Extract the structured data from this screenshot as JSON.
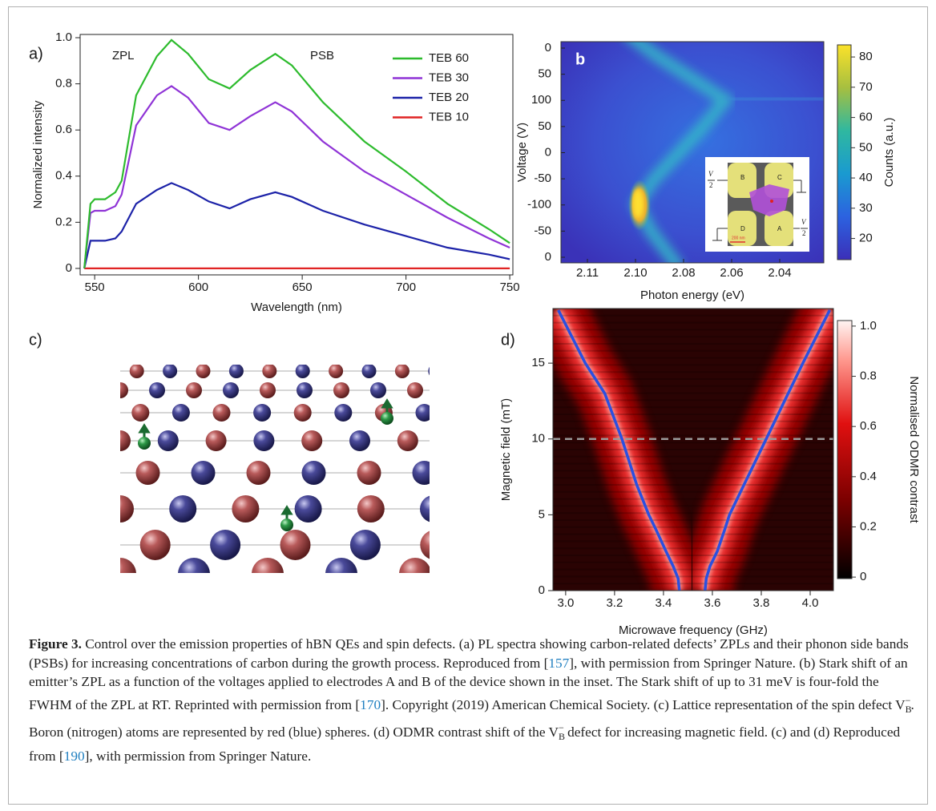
{
  "panel_labels": [
    "a)",
    "b",
    "c)",
    "d)"
  ],
  "chart_data": [
    {
      "type": "line",
      "xlabel": "Wavelength (nm)",
      "ylabel": "Normalized intensity",
      "annotations": [
        "ZPL",
        "PSB"
      ],
      "x": [
        545,
        548,
        550,
        555,
        560,
        563,
        570,
        580,
        587,
        595,
        605,
        615,
        625,
        637,
        645,
        660,
        680,
        700,
        720,
        740,
        750
      ],
      "series": [
        {
          "name": "TEB 60",
          "color": "#2dbb2d",
          "values": [
            0,
            0.28,
            0.3,
            0.3,
            0.33,
            0.38,
            0.75,
            0.92,
            0.99,
            0.93,
            0.82,
            0.78,
            0.86,
            0.93,
            0.88,
            0.72,
            0.55,
            0.42,
            0.28,
            0.17,
            0.11
          ]
        },
        {
          "name": "TEB 30",
          "color": "#8f33d6",
          "values": [
            0,
            0.24,
            0.25,
            0.25,
            0.27,
            0.32,
            0.62,
            0.75,
            0.79,
            0.74,
            0.63,
            0.6,
            0.66,
            0.72,
            0.68,
            0.55,
            0.42,
            0.32,
            0.22,
            0.13,
            0.09
          ]
        },
        {
          "name": "TEB 20",
          "color": "#1c22a8",
          "values": [
            0,
            0.12,
            0.12,
            0.12,
            0.13,
            0.16,
            0.28,
            0.34,
            0.37,
            0.34,
            0.29,
            0.26,
            0.3,
            0.33,
            0.31,
            0.25,
            0.19,
            0.14,
            0.09,
            0.06,
            0.04
          ]
        },
        {
          "name": "TEB 10",
          "color": "#e02424",
          "values": [
            0,
            0,
            0,
            0,
            0,
            0,
            0,
            0,
            0,
            0,
            0,
            0,
            0,
            0,
            0,
            0,
            0,
            0,
            0,
            0,
            0
          ]
        }
      ],
      "xlim": [
        543,
        751.5
      ],
      "ylim": [
        -0.028,
        1.014
      ],
      "xticks": [
        550,
        600,
        650,
        700,
        750
      ],
      "yticks": [
        0,
        0.2,
        0.4,
        0.6,
        0.8,
        {
          "value": 1,
          "label": "1.0"
        }
      ],
      "legend": "upper right"
    },
    {
      "type": "heatmap",
      "xlabel": "Photon energy (eV)",
      "ylabel": "Voltage (V)",
      "xtick_labels": [
        "2.11",
        "2.10",
        "2.08",
        "2.06",
        "2.04"
      ],
      "ytick_labels": [
        "0",
        "50",
        "100",
        "50",
        "0",
        "-50",
        "-100",
        "-50",
        "0"
      ],
      "colorbar": {
        "label": "Counts (a.u.)",
        "colormap": "parula",
        "lim": [
          13,
          84
        ],
        "ticks": [
          20,
          30,
          40,
          50,
          60,
          70,
          80
        ]
      },
      "inset": {
        "electrodes": [
          "B",
          "C",
          "D",
          "A"
        ],
        "voltage": "V",
        "divisor": "2",
        "scale": "200 nm"
      }
    },
    {
      "type": "heatmap",
      "xlabel": "Microwave frequency (GHz)",
      "ylabel": "Magnetic field (mT)",
      "xlim": [
        2.948,
        4.095
      ],
      "ylim": [
        0,
        18.6
      ],
      "xticks": [
        {
          "value": 3,
          "label": "3.0"
        },
        3.2,
        3.4,
        3.6,
        3.8,
        {
          "value": 4,
          "label": "4.0"
        }
      ],
      "yticks": [
        0,
        5,
        10,
        15
      ],
      "hline": 10,
      "series": [
        {
          "color": "#2a4fe0",
          "x": [
            3.465,
            3.46,
            3.44,
            3.41,
            3.37,
            3.34,
            3.29,
            3.23,
            3.16,
            3.08,
            2.97
          ],
          "values": [
            0,
            0.8,
            1.6,
            2.6,
            4,
            5,
            7,
            10,
            13,
            15,
            18.5
          ]
        },
        {
          "color": "#2a4fe0",
          "x": [
            3.57,
            3.575,
            3.59,
            3.62,
            3.65,
            3.67,
            3.73,
            3.82,
            3.91,
            3.97,
            4.08
          ],
          "values": [
            0,
            0.8,
            1.6,
            2.6,
            4,
            5,
            7,
            10,
            13,
            15,
            18.5
          ]
        }
      ],
      "colorbar": {
        "label": "Normalised ODMR contrast",
        "colormap": "hot",
        "lim": [
          -0.006,
          1.022
        ],
        "ticks": [
          0,
          0.2,
          0.4,
          0.6,
          0.8,
          {
            "value": 1,
            "label": "1.0"
          }
        ]
      }
    }
  ],
  "caption": [
    {
      "text": "Figure 3.",
      "style": "bold"
    },
    {
      "text": " Control over the emission properties of hBN QEs and spin defects. (a) PL spectra showing carbon-related defects’ ZPLs and their phonon side bands (PSBs) for increasing concentrations of carbon during the growth process. Reproduced from [",
      "style": "plain"
    },
    {
      "text": "157",
      "style": "link"
    },
    {
      "text": "], with permission from Springer Nature. (b) Stark shift of an emitter’s ZPL as a function of the voltages applied to electrodes A and B of the device shown in the inset. The Stark shift of up to 31 meV is four-fold the FWHM of the ZPL at RT. Reprinted with permission from [",
      "style": "plain"
    },
    {
      "text": "170",
      "style": "link"
    },
    {
      "text": "]. Copyright (2019) American Chemical Society. (c) Lattice representation of the spin defect V",
      "style": "plain"
    },
    {
      "text": "B",
      "style": "sub"
    },
    {
      "text": "−",
      "style": "sup"
    },
    {
      "text": ". Boron (nitrogen) atoms are represented by red (blue) spheres. (d) ODMR contrast shift of the V",
      "style": "plain"
    },
    {
      "text": "B",
      "style": "sub"
    },
    {
      "text": "−",
      "style": "sup"
    },
    {
      "text": " defect for increasing magnetic field. (c) and (d) Reproduced from [",
      "style": "plain"
    },
    {
      "text": "190",
      "style": "link"
    },
    {
      "text": "], with permission from Springer Nature.",
      "style": "plain"
    }
  ]
}
